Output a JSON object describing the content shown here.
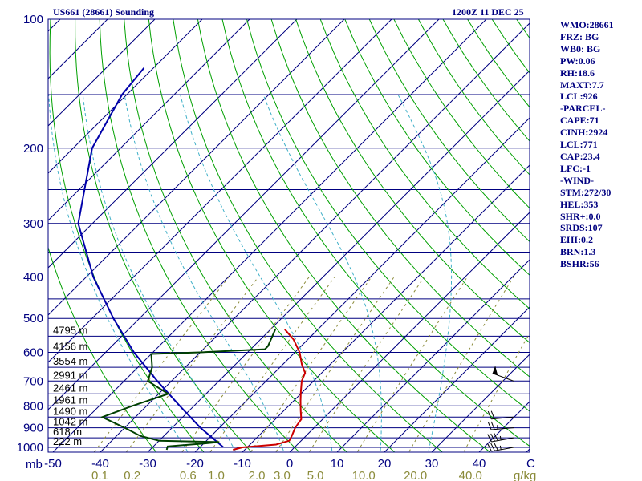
{
  "header": {
    "station": "US661 (28661) Sounding",
    "time": "1200Z 11 DEC 25"
  },
  "indices": [
    "WMO:28661",
    "FRZ: BG",
    "WB0: BG",
    "PW:0.06",
    "RH:18.6",
    "MAXT:7.7",
    "LCL:926",
    "-PARCEL-",
    "CAPE:71",
    "CINH:2924",
    "LCL:771",
    "CAP:23.4",
    "LFC:-1",
    "-WIND-",
    "STM:272/30",
    "HEL:353",
    "SHR+:0.0",
    "SRDS:107",
    "EHI:0.2",
    "BRN:1.3",
    "BSHR:56"
  ],
  "colors": {
    "isobar": "#000080",
    "isotherm": "#000080",
    "dry_adiabat": "#00a000",
    "moist_adiabat": "#40b0c8",
    "mixing_ratio": "#8b8b3a",
    "temperature": "#cc0000",
    "dewpoint": "#004000",
    "parcel": "#0000aa",
    "wind": "#000000"
  },
  "chart_data": {
    "type": "skew-t",
    "title": "US661 (28661) Sounding",
    "pressure_label": "mb",
    "pressure_ticks": [
      "100",
      "200",
      "300",
      "400",
      "500",
      "600",
      "700",
      "800",
      "900",
      "1000"
    ],
    "temperature_ticks": [
      "-50",
      "-40",
      "-30",
      "-20",
      "-10",
      "0",
      "10",
      "20",
      "30",
      "40"
    ],
    "temperature_unit": "C",
    "mixing_ratio_ticks": [
      "0.1",
      "0.2",
      "0.6",
      "1.0",
      "2.0",
      "3.0",
      "5.0",
      "10.0",
      "20.0",
      "40.0"
    ],
    "mixing_ratio_unit": "g/kg",
    "height_labels": [
      {
        "label": "4795 m",
        "p": 550
      },
      {
        "label": "4156 m",
        "p": 600
      },
      {
        "label": "3554 m",
        "p": 650
      },
      {
        "label": "2991 m",
        "p": 700
      },
      {
        "label": "2461 m",
        "p": 750
      },
      {
        "label": "1961 m",
        "p": 800
      },
      {
        "label": "1490 m",
        "p": 850
      },
      {
        "label": "1042 m",
        "p": 900
      },
      {
        "label": "618 m",
        "p": 950
      },
      {
        "label": "222 m",
        "p": 1000
      }
    ],
    "temperature_profile": [
      {
        "p": 1013,
        "t": -12.5
      },
      {
        "p": 1000,
        "t": -11.0
      },
      {
        "p": 985,
        "t": -4.5
      },
      {
        "p": 965,
        "t": -2.5
      },
      {
        "p": 940,
        "t": -3.0
      },
      {
        "p": 900,
        "t": -4.0
      },
      {
        "p": 860,
        "t": -4.5
      },
      {
        "p": 820,
        "t": -6.5
      },
      {
        "p": 780,
        "t": -8.5
      },
      {
        "p": 740,
        "t": -10.5
      },
      {
        "p": 700,
        "t": -12.5
      },
      {
        "p": 670,
        "t": -13.5
      },
      {
        "p": 640,
        "t": -16.0
      },
      {
        "p": 600,
        "t": -19.0
      },
      {
        "p": 560,
        "t": -23.0
      },
      {
        "p": 530,
        "t": -27.0
      }
    ],
    "dewpoint_profile": [
      {
        "p": 1013,
        "t": -26.5
      },
      {
        "p": 995,
        "t": -27.0
      },
      {
        "p": 980,
        "t": -20.0
      },
      {
        "p": 972,
        "t": -17.0
      },
      {
        "p": 965,
        "t": -30.0
      },
      {
        "p": 940,
        "t": -35.0
      },
      {
        "p": 900,
        "t": -40.0
      },
      {
        "p": 850,
        "t": -47.0
      },
      {
        "p": 800,
        "t": -43.0
      },
      {
        "p": 750,
        "t": -38.0
      },
      {
        "p": 700,
        "t": -45.0
      },
      {
        "p": 650,
        "t": -47.0
      },
      {
        "p": 605,
        "t": -50.0
      },
      {
        "p": 600,
        "t": -40.0
      },
      {
        "p": 590,
        "t": -27.0
      },
      {
        "p": 580,
        "t": -27.0
      },
      {
        "p": 530,
        "t": -29.0
      }
    ],
    "parcel_profile": [
      {
        "p": 1000,
        "t": -15.0
      },
      {
        "p": 900,
        "t": -24.0
      },
      {
        "p": 800,
        "t": -33.0
      },
      {
        "p": 700,
        "t": -43.0
      },
      {
        "p": 600,
        "t": -54.0
      },
      {
        "p": 500,
        "t": -65.5
      },
      {
        "p": 400,
        "t": -78.5
      },
      {
        "p": 300,
        "t": -93.0
      },
      {
        "p": 200,
        "t": -106.0
      },
      {
        "p": 150,
        "t": -111.0
      },
      {
        "p": 130,
        "t": -112.0
      }
    ],
    "wind_barbs": [
      {
        "p": 1000,
        "dir": 260,
        "speed": 35
      },
      {
        "p": 950,
        "dir": 260,
        "speed": 35
      },
      {
        "p": 900,
        "dir": 265,
        "speed": 25
      },
      {
        "p": 850,
        "dir": 265,
        "speed": 20
      },
      {
        "p": 700,
        "dir": 290,
        "speed": 50
      }
    ],
    "x_range_c": [
      -50,
      50
    ],
    "y_range_mb": [
      100,
      1050
    ]
  }
}
